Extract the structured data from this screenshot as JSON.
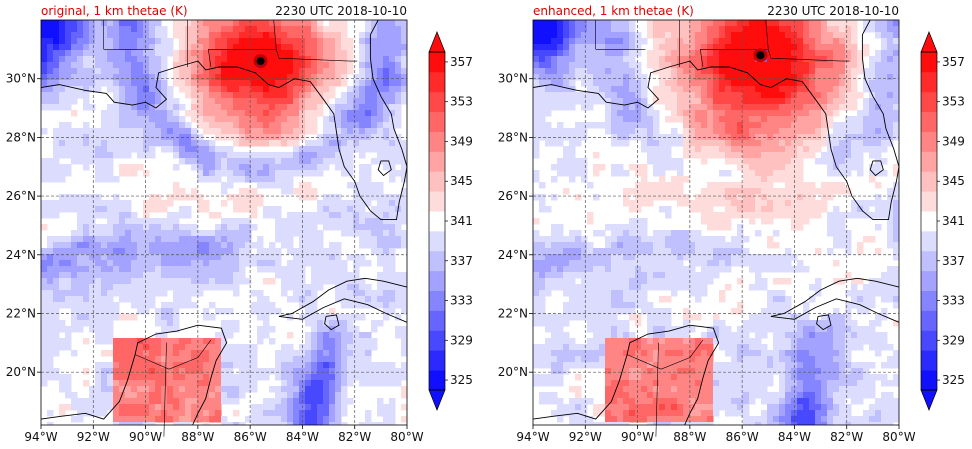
{
  "chart_data": [
    {
      "type": "heatmap",
      "title_left": "original, 1 km thetae (K)",
      "title_right": "2230 UTC 2018-10-10",
      "xlim": [
        -94,
        -80
      ],
      "ylim": [
        18.2,
        32
      ],
      "xticks": [
        "94°W",
        "92°W",
        "90°W",
        "88°W",
        "86°W",
        "84°W",
        "82°W",
        "80°W"
      ],
      "yticks": [
        "20°N",
        "22°N",
        "24°N",
        "26°N",
        "28°N",
        "30°N"
      ],
      "hurricane_center": {
        "lon": -85.6,
        "lat": 30.6
      },
      "colorbar": {
        "levels": [
          325,
          327,
          329,
          331,
          333,
          335,
          337,
          339,
          341,
          343,
          345,
          347,
          349,
          351,
          353,
          355,
          357,
          359
        ],
        "tick_labels": [
          "325",
          "329",
          "333",
          "337",
          "341",
          "345",
          "349",
          "353",
          "357"
        ],
        "extend": "both",
        "colors": [
          "#1010ff",
          "#2a2aff",
          "#4848ff",
          "#6666ff",
          "#8585ff",
          "#a3a3ff",
          "#c0c0ff",
          "#dcdcff",
          "#ffffff",
          "#ffdcdc",
          "#ffc0c0",
          "#ffa3a3",
          "#ff8585",
          "#ff6666",
          "#ff4848",
          "#ff2a2a",
          "#ff0d0d"
        ]
      }
    },
    {
      "type": "heatmap",
      "title_left": "enhanced, 1 km thetae (K)",
      "title_right": "2230 UTC 2018-10-10",
      "xlim": [
        -94,
        -80
      ],
      "ylim": [
        18.2,
        32
      ],
      "xticks": [
        "94°W",
        "92°W",
        "90°W",
        "88°W",
        "86°W",
        "84°W",
        "82°W",
        "80°W"
      ],
      "yticks": [
        "20°N",
        "22°N",
        "24°N",
        "26°N",
        "28°N",
        "30°N"
      ],
      "hurricane_center": {
        "lon": -85.3,
        "lat": 30.8
      },
      "colorbar": {
        "levels": [
          325,
          327,
          329,
          331,
          333,
          335,
          337,
          339,
          341,
          343,
          345,
          347,
          349,
          351,
          353,
          355,
          357,
          359
        ],
        "tick_labels": [
          "325",
          "329",
          "333",
          "337",
          "341",
          "345",
          "349",
          "353",
          "357"
        ],
        "extend": "both",
        "colors": [
          "#1010ff",
          "#2a2aff",
          "#4848ff",
          "#6666ff",
          "#8585ff",
          "#a3a3ff",
          "#c0c0ff",
          "#dcdcff",
          "#ffffff",
          "#ffdcdc",
          "#ffc0c0",
          "#ffa3a3",
          "#ff8585",
          "#ff6666",
          "#ff4848",
          "#ff2a2a",
          "#ff0d0d"
        ]
      }
    }
  ]
}
